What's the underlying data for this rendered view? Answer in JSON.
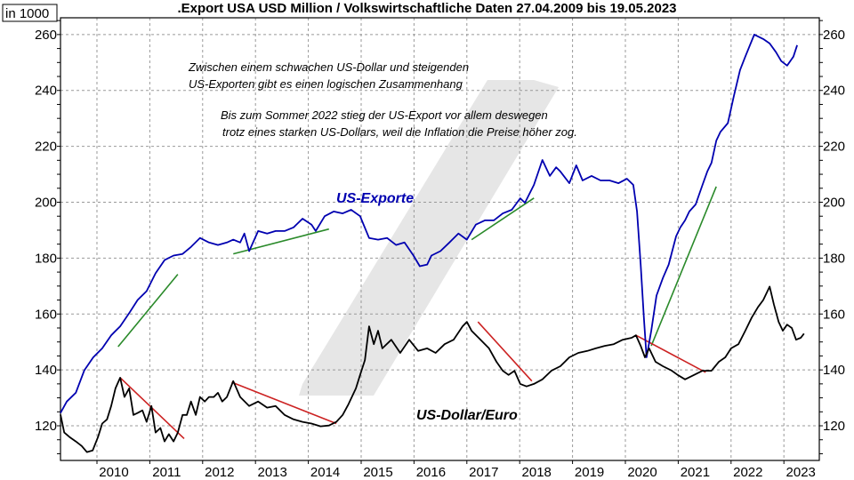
{
  "chart_data": {
    "type": "line",
    "title": ".Export USA USD Million / Volkswirtschaftliche Daten 27.04.2009 bis 19.05.2023",
    "unit_label": "in 1000",
    "xlim": [
      2009.31,
      2023.67
    ],
    "ylim": [
      107.6,
      266
    ],
    "x_ticks": [
      "2010",
      "2011",
      "2012",
      "2013",
      "2014",
      "2015",
      "2016",
      "2017",
      "2018",
      "2019",
      "2020",
      "2021",
      "2022",
      "2023"
    ],
    "y_ticks": [
      120,
      140,
      160,
      180,
      200,
      220,
      240,
      260
    ],
    "grid": true,
    "annotations": [
      "Zwischen einem schwachen US-Dollar und steigenden",
      "US-Exporten gibt es einen logischen Zusammenhang",
      "Bis zum Sommer 2022 stieg der US-Export vor allem deswegen",
      "trotz eines starken US-Dollars, weil die Inflation die Preise höher zog."
    ],
    "series": [
      {
        "name": "US-Exporte",
        "color": "#0000b0",
        "points": [
          [
            2009.31,
            124.6
          ],
          [
            2009.43,
            128.7
          ],
          [
            2009.6,
            131.8
          ],
          [
            2009.76,
            139.8
          ],
          [
            2009.93,
            144.5
          ],
          [
            2010.1,
            147.7
          ],
          [
            2010.27,
            152.4
          ],
          [
            2010.44,
            155.6
          ],
          [
            2010.61,
            160.3
          ],
          [
            2010.77,
            165
          ],
          [
            2010.94,
            168.2
          ],
          [
            2011.11,
            174.6
          ],
          [
            2011.28,
            179.3
          ],
          [
            2011.45,
            180.9
          ],
          [
            2011.62,
            181.5
          ],
          [
            2011.78,
            184
          ],
          [
            2011.95,
            187.2
          ],
          [
            2012.12,
            185.6
          ],
          [
            2012.29,
            184.7
          ],
          [
            2012.46,
            185.6
          ],
          [
            2012.58,
            186.6
          ],
          [
            2012.71,
            185.6
          ],
          [
            2012.79,
            188.8
          ],
          [
            2012.88,
            182.5
          ],
          [
            2013.05,
            189.7
          ],
          [
            2013.22,
            188.8
          ],
          [
            2013.38,
            189.7
          ],
          [
            2013.55,
            189.7
          ],
          [
            2013.72,
            191
          ],
          [
            2013.89,
            194.1
          ],
          [
            2014.06,
            192
          ],
          [
            2014.14,
            189.7
          ],
          [
            2014.31,
            195
          ],
          [
            2014.48,
            196.7
          ],
          [
            2014.65,
            196
          ],
          [
            2014.81,
            197.3
          ],
          [
            2014.98,
            195
          ],
          [
            2015.15,
            187.2
          ],
          [
            2015.32,
            186.6
          ],
          [
            2015.49,
            187.2
          ],
          [
            2015.66,
            184.7
          ],
          [
            2015.82,
            185.6
          ],
          [
            2015.99,
            180.9
          ],
          [
            2016.11,
            177.1
          ],
          [
            2016.25,
            177.7
          ],
          [
            2016.33,
            180.9
          ],
          [
            2016.5,
            182.5
          ],
          [
            2016.67,
            185.6
          ],
          [
            2016.84,
            188.8
          ],
          [
            2017.0,
            186.6
          ],
          [
            2017.17,
            192
          ],
          [
            2017.34,
            193.5
          ],
          [
            2017.51,
            193.5
          ],
          [
            2017.68,
            196
          ],
          [
            2017.85,
            197.3
          ],
          [
            2018.01,
            201.4
          ],
          [
            2018.1,
            199.8
          ],
          [
            2018.27,
            206.2
          ],
          [
            2018.43,
            215.1
          ],
          [
            2018.57,
            209.4
          ],
          [
            2018.69,
            212.5
          ],
          [
            2018.77,
            211
          ],
          [
            2018.94,
            206.8
          ],
          [
            2019.07,
            213.2
          ],
          [
            2019.19,
            207.8
          ],
          [
            2019.36,
            209.4
          ],
          [
            2019.53,
            207.8
          ],
          [
            2019.7,
            207.8
          ],
          [
            2019.87,
            206.8
          ],
          [
            2020.03,
            208.4
          ],
          [
            2020.15,
            206.2
          ],
          [
            2020.22,
            196.7
          ],
          [
            2020.29,
            177.7
          ],
          [
            2020.35,
            158.7
          ],
          [
            2020.4,
            144.5
          ],
          [
            2020.49,
            154
          ],
          [
            2020.59,
            166.6
          ],
          [
            2020.71,
            172.9
          ],
          [
            2020.82,
            177.7
          ],
          [
            2020.96,
            187.8
          ],
          [
            2021.04,
            191
          ],
          [
            2021.13,
            193.5
          ],
          [
            2021.21,
            196.7
          ],
          [
            2021.33,
            199.2
          ],
          [
            2021.46,
            206.2
          ],
          [
            2021.55,
            211
          ],
          [
            2021.63,
            214.1
          ],
          [
            2021.72,
            222
          ],
          [
            2021.8,
            225.2
          ],
          [
            2021.94,
            228.3
          ],
          [
            2022.05,
            237.8
          ],
          [
            2022.17,
            247.3
          ],
          [
            2022.27,
            252.1
          ],
          [
            2022.44,
            260
          ],
          [
            2022.61,
            258.4
          ],
          [
            2022.73,
            256.8
          ],
          [
            2022.85,
            253.7
          ],
          [
            2022.95,
            250.5
          ],
          [
            2023.06,
            248.9
          ],
          [
            2023.18,
            252.1
          ],
          [
            2023.25,
            256.2
          ]
        ]
      },
      {
        "name": "US-Dollar/Euro",
        "color": "#000000",
        "points": [
          [
            2009.31,
            124
          ],
          [
            2009.38,
            117.6
          ],
          [
            2009.48,
            116
          ],
          [
            2009.6,
            114.4
          ],
          [
            2009.71,
            112.8
          ],
          [
            2009.81,
            110.6
          ],
          [
            2009.92,
            111.2
          ],
          [
            2010.02,
            116
          ],
          [
            2010.1,
            120.8
          ],
          [
            2010.19,
            122.3
          ],
          [
            2010.27,
            127.1
          ],
          [
            2010.35,
            133.4
          ],
          [
            2010.44,
            137.2
          ],
          [
            2010.52,
            130.3
          ],
          [
            2010.61,
            133.4
          ],
          [
            2010.69,
            123.9
          ],
          [
            2010.77,
            124.6
          ],
          [
            2010.86,
            125.5
          ],
          [
            2010.94,
            121.4
          ],
          [
            2011.03,
            127.1
          ],
          [
            2011.11,
            117.6
          ],
          [
            2011.2,
            119.2
          ],
          [
            2011.28,
            114.4
          ],
          [
            2011.36,
            117
          ],
          [
            2011.45,
            114.4
          ],
          [
            2011.53,
            117.6
          ],
          [
            2011.62,
            123.9
          ],
          [
            2011.7,
            123.9
          ],
          [
            2011.78,
            128.7
          ],
          [
            2011.87,
            123.9
          ],
          [
            2011.95,
            130.3
          ],
          [
            2012.04,
            128.7
          ],
          [
            2012.12,
            130.3
          ],
          [
            2012.21,
            130.3
          ],
          [
            2012.29,
            131.8
          ],
          [
            2012.37,
            128.7
          ],
          [
            2012.46,
            130.3
          ],
          [
            2012.58,
            136
          ],
          [
            2012.71,
            130.3
          ],
          [
            2012.88,
            127.1
          ],
          [
            2013.05,
            128.7
          ],
          [
            2013.22,
            126.5
          ],
          [
            2013.38,
            127.1
          ],
          [
            2013.55,
            123.9
          ],
          [
            2013.72,
            122.3
          ],
          [
            2013.89,
            121.4
          ],
          [
            2014.06,
            120.8
          ],
          [
            2014.23,
            119.8
          ],
          [
            2014.39,
            120.1
          ],
          [
            2014.53,
            121.4
          ],
          [
            2014.65,
            123.9
          ],
          [
            2014.76,
            127.7
          ],
          [
            2014.9,
            133.4
          ],
          [
            2014.98,
            138.2
          ],
          [
            2015.07,
            143.5
          ],
          [
            2015.15,
            155.6
          ],
          [
            2015.24,
            149.2
          ],
          [
            2015.32,
            154
          ],
          [
            2015.4,
            147.7
          ],
          [
            2015.57,
            150.8
          ],
          [
            2015.74,
            146.1
          ],
          [
            2015.91,
            150.8
          ],
          [
            2016.08,
            146.8
          ],
          [
            2016.25,
            147.7
          ],
          [
            2016.41,
            146.1
          ],
          [
            2016.58,
            149.2
          ],
          [
            2016.75,
            150.8
          ],
          [
            2016.92,
            155.6
          ],
          [
            2017.0,
            157.2
          ],
          [
            2017.09,
            154
          ],
          [
            2017.26,
            150.8
          ],
          [
            2017.42,
            147.7
          ],
          [
            2017.56,
            142.9
          ],
          [
            2017.68,
            139.7
          ],
          [
            2017.79,
            138.2
          ],
          [
            2017.9,
            139.7
          ],
          [
            2018.01,
            135
          ],
          [
            2018.13,
            134.1
          ],
          [
            2018.27,
            135
          ],
          [
            2018.43,
            136.6
          ],
          [
            2018.6,
            139.7
          ],
          [
            2018.77,
            141.3
          ],
          [
            2018.94,
            144.5
          ],
          [
            2019.11,
            146.1
          ],
          [
            2019.28,
            146.8
          ],
          [
            2019.44,
            147.7
          ],
          [
            2019.61,
            148.6
          ],
          [
            2019.78,
            149.2
          ],
          [
            2019.95,
            150.8
          ],
          [
            2020.12,
            151.5
          ],
          [
            2020.2,
            152.4
          ],
          [
            2020.29,
            148.6
          ],
          [
            2020.37,
            144.5
          ],
          [
            2020.45,
            147.7
          ],
          [
            2020.57,
            142.9
          ],
          [
            2020.71,
            141.3
          ],
          [
            2020.88,
            139.7
          ],
          [
            2020.99,
            138.2
          ],
          [
            2021.13,
            136.6
          ],
          [
            2021.3,
            138.2
          ],
          [
            2021.46,
            139.7
          ],
          [
            2021.63,
            139.7
          ],
          [
            2021.77,
            142.9
          ],
          [
            2021.89,
            144.5
          ],
          [
            2022.0,
            147.7
          ],
          [
            2022.14,
            149.2
          ],
          [
            2022.27,
            154
          ],
          [
            2022.39,
            158.7
          ],
          [
            2022.51,
            162.5
          ],
          [
            2022.61,
            165
          ],
          [
            2022.73,
            169.8
          ],
          [
            2022.81,
            163.5
          ],
          [
            2022.9,
            157.2
          ],
          [
            2022.98,
            154
          ],
          [
            2023.06,
            156.2
          ],
          [
            2023.15,
            155
          ],
          [
            2023.23,
            150.8
          ],
          [
            2023.32,
            151.5
          ],
          [
            2023.38,
            153
          ]
        ]
      }
    ],
    "trend_lines": [
      {
        "color": "#2a8a2a",
        "from": [
          2010.4,
          148.3
        ],
        "to": [
          2011.53,
          174.2
        ]
      },
      {
        "color": "#2a8a2a",
        "from": [
          2012.58,
          181.5
        ],
        "to": [
          2014.39,
          190.4
        ]
      },
      {
        "color": "#2a8a2a",
        "from": [
          2017.09,
          186.6
        ],
        "to": [
          2018.27,
          201.5
        ]
      },
      {
        "color": "#2a8a2a",
        "from": [
          2020.49,
          148.6
        ],
        "to": [
          2021.72,
          205.6
        ]
      },
      {
        "color": "#cc2222",
        "from": [
          2010.44,
          137.2
        ],
        "to": [
          2011.65,
          115.4
        ]
      },
      {
        "color": "#cc2222",
        "from": [
          2012.55,
          135.6
        ],
        "to": [
          2014.53,
          120.8
        ]
      },
      {
        "color": "#cc2222",
        "from": [
          2017.21,
          157.2
        ],
        "to": [
          2018.23,
          136.0
        ]
      },
      {
        "color": "#cc2222",
        "from": [
          2020.2,
          152.4
        ],
        "to": [
          2021.52,
          139.1
        ]
      }
    ]
  }
}
